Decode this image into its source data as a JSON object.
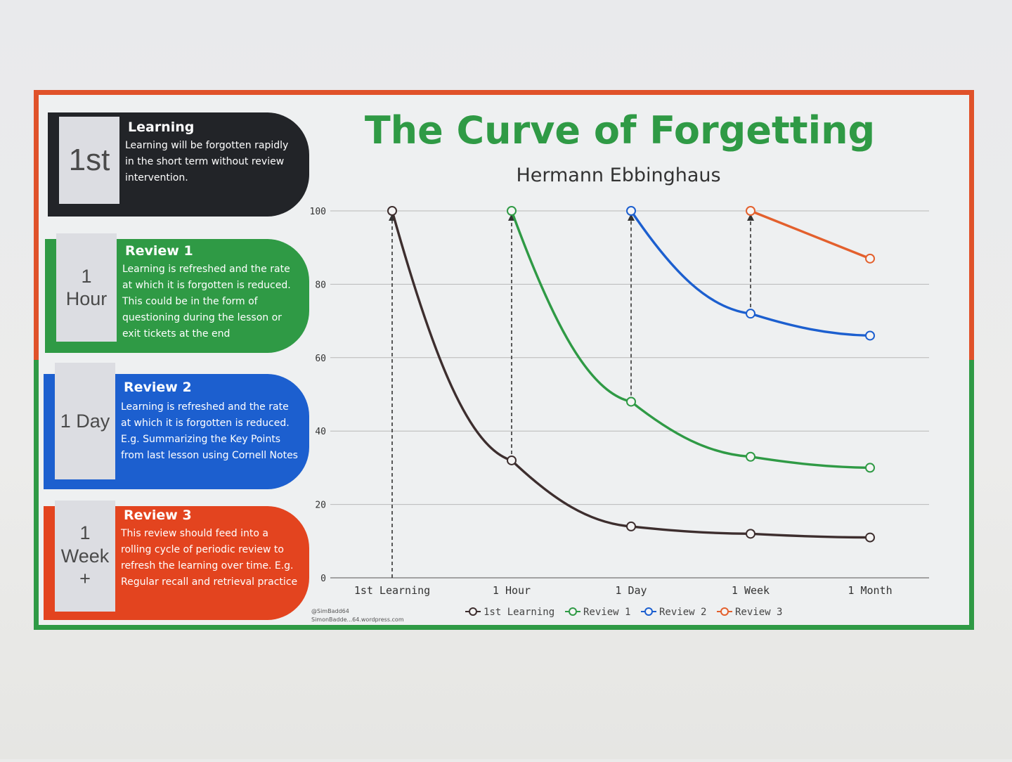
{
  "cards": [
    {
      "side": "1st",
      "title": "Learning",
      "text": "Learning will be forgotten rapidly in the short term without review intervention.",
      "color": "#222428"
    },
    {
      "side": "1\nHour",
      "title": "Review 1",
      "text": "Learning is refreshed and the rate at which it is forgotten is reduced. This could be in the form of questioning during the lesson or exit tickets at the end",
      "color": "#2f9a45"
    },
    {
      "side": "1 Day",
      "title": "Review 2",
      "text": "Learning is refreshed and the rate at which it is forgotten is reduced. E.g. Summarizing the Key Points from last lesson using Cornell Notes",
      "color": "#1c5fcf"
    },
    {
      "side": "1\nWeek\n+",
      "title": "Review 3",
      "text": "This review should feed into a rolling cycle of periodic review to refresh the learning over time. E.g. Regular recall and retrieval practice",
      "color": "#e3441f"
    }
  ],
  "credit": {
    "line1": "@SimBadd64",
    "line2": "SimonBadde...64.wordpress.com"
  },
  "chart_data": {
    "type": "line",
    "title": "The Curve of Forgetting",
    "subtitle": "Hermann Ebbinghaus",
    "categories": [
      "1st Learning",
      "1 Hour",
      "1 Day",
      "1 Week",
      "1 Month"
    ],
    "ylim": [
      0,
      100
    ],
    "yticks": [
      "0",
      "20",
      "40",
      "60",
      "80",
      "100"
    ],
    "grid": true,
    "legend_position": "bottom",
    "series": [
      {
        "name": "1st Learning",
        "color": "#3d2e2e",
        "x": [
          0,
          1,
          2,
          3,
          4
        ],
        "values": [
          100,
          32,
          14,
          12,
          11
        ]
      },
      {
        "name": "Review 1",
        "color": "#2f9a45",
        "x": [
          1,
          2,
          3,
          4
        ],
        "values": [
          100,
          48,
          33,
          30
        ]
      },
      {
        "name": "Review 2",
        "color": "#1c5fcf",
        "x": [
          2,
          3,
          4
        ],
        "values": [
          100,
          72,
          66
        ]
      },
      {
        "name": "Review 3",
        "color": "#e3602d",
        "x": [
          3,
          4
        ],
        "values": [
          100,
          87
        ]
      }
    ],
    "review_arrows": [
      {
        "x": 0,
        "from": 0,
        "to": 100
      },
      {
        "x": 1,
        "from": 32,
        "to": 100
      },
      {
        "x": 2,
        "from": 48,
        "to": 100
      },
      {
        "x": 3,
        "from": 72,
        "to": 100
      }
    ]
  }
}
